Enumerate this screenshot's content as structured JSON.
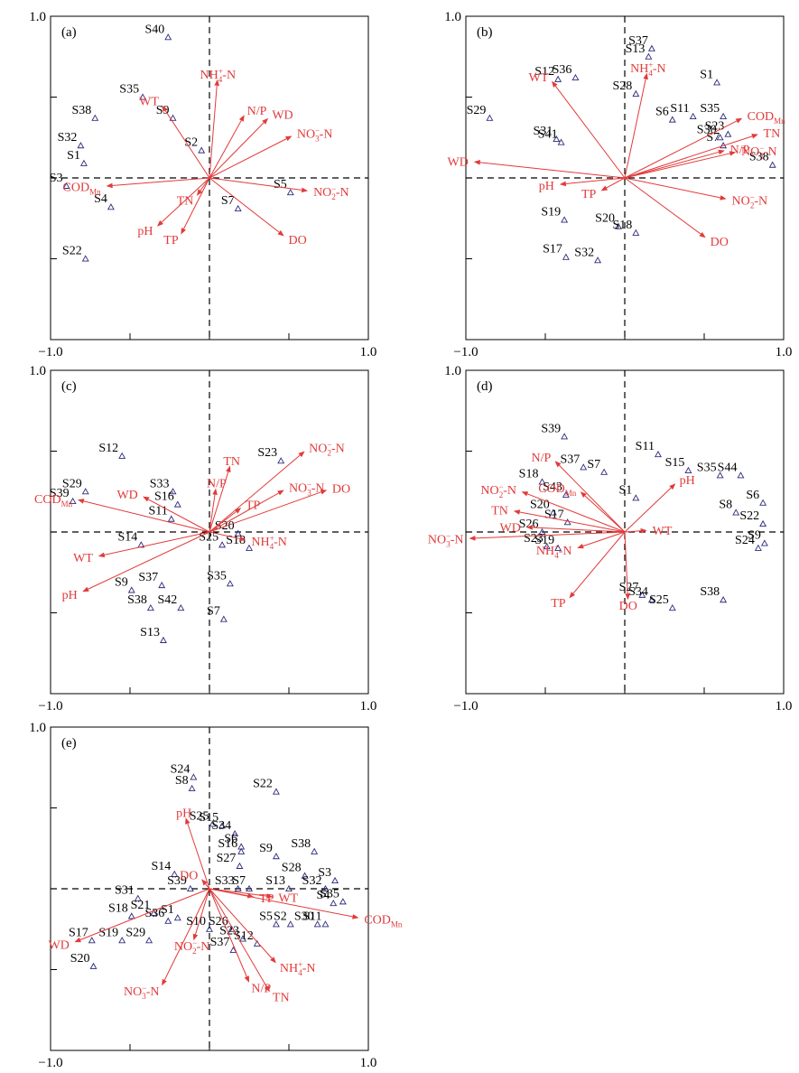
{
  "figure": {
    "tick_min": "−1.0",
    "tick_max": "1.0"
  },
  "chart_data": [
    {
      "type": "scatter",
      "panel": "(a)",
      "xlim": [
        -1,
        1
      ],
      "ylim": [
        -1,
        1
      ],
      "sites": [
        {
          "name": "S40",
          "x": -0.26,
          "y": 0.87
        },
        {
          "name": "S35",
          "x": -0.42,
          "y": 0.5
        },
        {
          "name": "S38",
          "x": -0.72,
          "y": 0.37
        },
        {
          "name": "S9",
          "x": -0.23,
          "y": 0.37
        },
        {
          "name": "S32",
          "x": -0.81,
          "y": 0.2
        },
        {
          "name": "S2",
          "x": -0.05,
          "y": 0.17
        },
        {
          "name": "S1",
          "x": -0.79,
          "y": 0.09
        },
        {
          "name": "S3",
          "x": -0.9,
          "y": -0.05
        },
        {
          "name": "S5",
          "x": 0.51,
          "y": -0.09
        },
        {
          "name": "S4",
          "x": -0.62,
          "y": -0.18
        },
        {
          "name": "S7",
          "x": 0.18,
          "y": -0.19
        },
        {
          "name": "S22",
          "x": -0.78,
          "y": -0.5
        }
      ],
      "vectors": [
        {
          "name": "NH",
          "sup": "+",
          "sub": "4",
          "tail": "-N",
          "x": 0.05,
          "y": 0.61
        },
        {
          "name": "WT",
          "x": -0.3,
          "y": 0.45
        },
        {
          "name": "N/P",
          "x": 0.22,
          "y": 0.39
        },
        {
          "name": "WD",
          "x": 0.37,
          "y": 0.37
        },
        {
          "name": "NO",
          "sup": "−",
          "sub": "3",
          "tail": "-N",
          "x": 0.52,
          "y": 0.26
        },
        {
          "name": "NO",
          "sup": "−",
          "sub": "2",
          "tail": "-N",
          "x": 0.62,
          "y": -0.08
        },
        {
          "name": "DO",
          "x": 0.47,
          "y": -0.36
        },
        {
          "name": "COD",
          "sub": "Mn",
          "x": -0.65,
          "y": -0.05
        },
        {
          "name": "TN",
          "x": -0.08,
          "y": -0.11
        },
        {
          "name": "TP",
          "x": -0.18,
          "y": -0.35
        },
        {
          "name": "pH",
          "x": -0.33,
          "y": -0.3
        }
      ]
    },
    {
      "type": "scatter",
      "panel": "(b)",
      "xlim": [
        -1,
        1
      ],
      "ylim": [
        -1,
        1
      ],
      "sites": [
        {
          "name": "S13",
          "x": 0.15,
          "y": 0.75
        },
        {
          "name": "S37",
          "x": 0.17,
          "y": 0.8
        },
        {
          "name": "S12",
          "x": -0.42,
          "y": 0.61
        },
        {
          "name": "S36",
          "x": -0.31,
          "y": 0.62
        },
        {
          "name": "S1",
          "x": 0.58,
          "y": 0.59
        },
        {
          "name": "S29",
          "x": -0.85,
          "y": 0.37
        },
        {
          "name": "S28",
          "x": 0.07,
          "y": 0.52
        },
        {
          "name": "S6",
          "x": 0.3,
          "y": 0.36
        },
        {
          "name": "S11",
          "x": 0.43,
          "y": 0.38
        },
        {
          "name": "S35",
          "x": 0.62,
          "y": 0.38
        },
        {
          "name": "S30",
          "x": 0.6,
          "y": 0.25
        },
        {
          "name": "S23",
          "x": 0.65,
          "y": 0.27
        },
        {
          "name": "S7",
          "x": 0.62,
          "y": 0.2
        },
        {
          "name": "S31",
          "x": -0.43,
          "y": 0.24
        },
        {
          "name": "S41",
          "x": -0.4,
          "y": 0.22
        },
        {
          "name": "S38",
          "x": 0.93,
          "y": 0.08
        },
        {
          "name": "S19",
          "x": -0.38,
          "y": -0.26
        },
        {
          "name": "S20",
          "x": -0.04,
          "y": -0.3
        },
        {
          "name": "S18",
          "x": 0.07,
          "y": -0.34
        },
        {
          "name": "S17",
          "x": -0.37,
          "y": -0.49
        },
        {
          "name": "S32",
          "x": -0.17,
          "y": -0.51
        }
      ],
      "vectors": [
        {
          "name": "NH",
          "sup": "+",
          "sub": "4",
          "tail": "-N",
          "x": 0.14,
          "y": 0.65
        },
        {
          "name": "WT",
          "x": -0.46,
          "y": 0.6
        },
        {
          "name": "COD",
          "sub": "Mn",
          "x": 0.74,
          "y": 0.37
        },
        {
          "name": "TN",
          "x": 0.84,
          "y": 0.27
        },
        {
          "name": "NO",
          "sup": "−",
          "sub": "3",
          "tail": "-N",
          "x": 0.7,
          "y": 0.16
        },
        {
          "name": "N/P",
          "x": 0.63,
          "y": 0.17
        },
        {
          "name": "WD",
          "x": -0.95,
          "y": 0.1
        },
        {
          "name": "pH",
          "x": -0.41,
          "y": -0.04
        },
        {
          "name": "TP",
          "x": -0.15,
          "y": -0.08
        },
        {
          "name": "NO",
          "sup": "−",
          "sub": "2",
          "tail": "-N",
          "x": 0.64,
          "y": -0.13
        },
        {
          "name": "DO",
          "x": 0.51,
          "y": -0.37
        }
      ]
    },
    {
      "type": "scatter",
      "panel": "(c)",
      "xlim": [
        -1,
        1
      ],
      "ylim": [
        -1,
        1
      ],
      "sites": [
        {
          "name": "S12",
          "x": -0.55,
          "y": 0.47
        },
        {
          "name": "S29",
          "x": -0.78,
          "y": 0.25
        },
        {
          "name": "S39",
          "x": -0.86,
          "y": 0.19
        },
        {
          "name": "S33",
          "x": -0.23,
          "y": 0.25
        },
        {
          "name": "S16",
          "x": -0.2,
          "y": 0.17
        },
        {
          "name": "S11",
          "x": -0.24,
          "y": 0.08
        },
        {
          "name": "S23",
          "x": 0.45,
          "y": 0.44
        },
        {
          "name": "S20",
          "x": 0.18,
          "y": -0.01
        },
        {
          "name": "S25",
          "x": 0.08,
          "y": -0.08
        },
        {
          "name": "S18",
          "x": 0.25,
          "y": -0.1
        },
        {
          "name": "S14",
          "x": -0.43,
          "y": -0.08
        },
        {
          "name": "S9",
          "x": -0.49,
          "y": -0.36
        },
        {
          "name": "S37",
          "x": -0.3,
          "y": -0.33
        },
        {
          "name": "S38",
          "x": -0.37,
          "y": -0.47
        },
        {
          "name": "S42",
          "x": -0.18,
          "y": -0.47
        },
        {
          "name": "S35",
          "x": 0.13,
          "y": -0.32
        },
        {
          "name": "S7",
          "x": 0.09,
          "y": -0.54
        },
        {
          "name": "S13",
          "x": -0.29,
          "y": -0.67
        }
      ],
      "vectors": [
        {
          "name": "NO",
          "sup": "−",
          "sub": "2",
          "tail": "-N",
          "x": 0.6,
          "y": 0.5
        },
        {
          "name": "TN",
          "x": 0.13,
          "y": 0.41
        },
        {
          "name": "N/P",
          "x": 0.04,
          "y": 0.27
        },
        {
          "name": "NO",
          "sup": "−",
          "sub": "3",
          "tail": "-N",
          "x": 0.47,
          "y": 0.26
        },
        {
          "name": "DO",
          "x": 0.74,
          "y": 0.26
        },
        {
          "name": "TP",
          "x": 0.2,
          "y": 0.15
        },
        {
          "name": "WD",
          "x": -0.42,
          "y": 0.22
        },
        {
          "name": "COD",
          "sub": "Mn",
          "x": -0.83,
          "y": 0.2
        },
        {
          "name": "NH",
          "sup": "+",
          "sub": "4",
          "tail": "-N",
          "x": 0.23,
          "y": -0.05
        },
        {
          "name": "WT",
          "x": -0.7,
          "y": -0.15
        },
        {
          "name": "pH",
          "x": -0.8,
          "y": -0.37
        }
      ]
    },
    {
      "type": "scatter",
      "panel": "(d)",
      "xlim": [
        -1,
        1
      ],
      "ylim": [
        -1,
        1
      ],
      "sites": [
        {
          "name": "S39",
          "x": -0.38,
          "y": 0.59
        },
        {
          "name": "S37",
          "x": -0.26,
          "y": 0.4
        },
        {
          "name": "S7",
          "x": -0.13,
          "y": 0.37
        },
        {
          "name": "S11",
          "x": 0.21,
          "y": 0.48
        },
        {
          "name": "S15",
          "x": 0.4,
          "y": 0.38
        },
        {
          "name": "S35",
          "x": 0.6,
          "y": 0.35
        },
        {
          "name": "S44",
          "x": 0.73,
          "y": 0.35
        },
        {
          "name": "S18",
          "x": -0.52,
          "y": 0.31
        },
        {
          "name": "S43",
          "x": -0.37,
          "y": 0.23
        },
        {
          "name": "S1",
          "x": 0.07,
          "y": 0.21
        },
        {
          "name": "S20",
          "x": -0.45,
          "y": 0.12
        },
        {
          "name": "S17",
          "x": -0.36,
          "y": 0.06
        },
        {
          "name": "S26",
          "x": -0.52,
          "y": 0.0
        },
        {
          "name": "S6",
          "x": 0.87,
          "y": 0.18
        },
        {
          "name": "S8",
          "x": 0.7,
          "y": 0.12
        },
        {
          "name": "S22",
          "x": 0.87,
          "y": 0.05
        },
        {
          "name": "S23",
          "x": -0.49,
          "y": -0.09
        },
        {
          "name": "S19",
          "x": -0.42,
          "y": -0.1
        },
        {
          "name": "S9",
          "x": 0.88,
          "y": -0.07
        },
        {
          "name": "S24",
          "x": 0.84,
          "y": -0.1
        },
        {
          "name": "S27",
          "x": 0.11,
          "y": -0.39
        },
        {
          "name": "S34",
          "x": 0.17,
          "y": -0.42
        },
        {
          "name": "S25",
          "x": 0.3,
          "y": -0.47
        },
        {
          "name": "S38",
          "x": 0.62,
          "y": -0.42
        }
      ],
      "vectors": [
        {
          "name": "N/P",
          "x": -0.44,
          "y": 0.44
        },
        {
          "name": "COD",
          "sub": "Mn",
          "x": -0.28,
          "y": 0.25
        },
        {
          "name": "NO",
          "sup": "−",
          "sub": "2",
          "tail": "-N",
          "x": -0.65,
          "y": 0.25
        },
        {
          "name": "pH",
          "x": 0.32,
          "y": 0.3
        },
        {
          "name": "TN",
          "x": -0.7,
          "y": 0.13
        },
        {
          "name": "WD",
          "x": -0.62,
          "y": 0.03
        },
        {
          "name": "WT",
          "x": 0.14,
          "y": 0.01
        },
        {
          "name": "NO",
          "sup": "−",
          "sub": "3",
          "tail": "-N",
          "x": -0.98,
          "y": -0.04
        },
        {
          "name": "NH",
          "sup": "+",
          "sub": "4",
          "tail": "-N",
          "x": -0.3,
          "y": -0.1
        },
        {
          "name": "TP",
          "x": -0.35,
          "y": -0.41
        },
        {
          "name": "DO",
          "x": 0.02,
          "y": -0.42
        }
      ]
    },
    {
      "type": "scatter",
      "panel": "(e)",
      "xlim": [
        -1,
        1
      ],
      "ylim": [
        -1,
        1
      ],
      "sites": [
        {
          "name": "S24",
          "x": -0.1,
          "y": 0.69
        },
        {
          "name": "S8",
          "x": -0.11,
          "y": 0.62
        },
        {
          "name": "S22",
          "x": 0.42,
          "y": 0.6
        },
        {
          "name": "S25",
          "x": 0.02,
          "y": 0.4
        },
        {
          "name": "S15",
          "x": 0.08,
          "y": 0.39
        },
        {
          "name": "S34",
          "x": 0.16,
          "y": 0.34
        },
        {
          "name": "S6",
          "x": 0.2,
          "y": 0.26
        },
        {
          "name": "S16",
          "x": 0.2,
          "y": 0.23
        },
        {
          "name": "S27",
          "x": 0.19,
          "y": 0.14
        },
        {
          "name": "S9",
          "x": 0.42,
          "y": 0.2
        },
        {
          "name": "S38",
          "x": 0.66,
          "y": 0.23
        },
        {
          "name": "S14",
          "x": -0.22,
          "y": 0.09
        },
        {
          "name": "S28",
          "x": 0.6,
          "y": 0.08
        },
        {
          "name": "S3",
          "x": 0.79,
          "y": 0.05
        },
        {
          "name": "S39",
          "x": -0.12,
          "y": 0.0
        },
        {
          "name": "S31",
          "x": -0.45,
          "y": -0.06
        },
        {
          "name": "S13",
          "x": 0.5,
          "y": 0.0
        },
        {
          "name": "S32",
          "x": 0.73,
          "y": 0.0
        },
        {
          "name": "S7",
          "x": 0.25,
          "y": 0.0
        },
        {
          "name": "S33",
          "x": 0.18,
          "y": 0.0
        },
        {
          "name": "S35",
          "x": 0.84,
          "y": -0.08
        },
        {
          "name": "S4",
          "x": 0.78,
          "y": -0.09
        },
        {
          "name": "S18",
          "x": -0.49,
          "y": -0.17
        },
        {
          "name": "S21",
          "x": -0.35,
          "y": -0.15
        },
        {
          "name": "S36",
          "x": -0.26,
          "y": -0.2
        },
        {
          "name": "S1",
          "x": -0.2,
          "y": -0.18
        },
        {
          "name": "S30",
          "x": 0.68,
          "y": -0.22
        },
        {
          "name": "S2",
          "x": 0.51,
          "y": -0.22
        },
        {
          "name": "S5",
          "x": 0.42,
          "y": -0.22
        },
        {
          "name": "S10",
          "x": 0.0,
          "y": -0.25
        },
        {
          "name": "S26",
          "x": 0.14,
          "y": -0.25
        },
        {
          "name": "S23",
          "x": 0.21,
          "y": -0.31
        },
        {
          "name": "S12",
          "x": 0.3,
          "y": -0.34
        },
        {
          "name": "S37",
          "x": 0.15,
          "y": -0.38
        },
        {
          "name": "S17",
          "x": -0.74,
          "y": -0.32
        },
        {
          "name": "S19",
          "x": -0.55,
          "y": -0.32
        },
        {
          "name": "S29",
          "x": -0.38,
          "y": -0.32
        },
        {
          "name": "S20",
          "x": -0.73,
          "y": -0.48
        },
        {
          "name": "S11",
          "x": 0.73,
          "y": -0.22
        }
      ],
      "vectors": [
        {
          "name": "pH",
          "x": -0.15,
          "y": 0.44
        },
        {
          "name": "DO",
          "x": -0.05,
          "y": 0.06
        },
        {
          "name": "TP",
          "x": 0.28,
          "y": -0.05
        },
        {
          "name": "WT",
          "x": 0.4,
          "y": -0.05
        },
        {
          "name": "COD",
          "sub": "Mn",
          "x": 0.94,
          "y": -0.18
        },
        {
          "name": "NH",
          "sup": "+",
          "sub": "4",
          "tail": "-N",
          "x": 0.42,
          "y": -0.46
        },
        {
          "name": "N/P",
          "x": 0.25,
          "y": -0.58
        },
        {
          "name": "TN",
          "x": 0.38,
          "y": -0.64
        },
        {
          "name": "NO",
          "sup": "−",
          "sub": "2",
          "tail": "-N",
          "x": -0.1,
          "y": -0.32
        },
        {
          "name": "NO",
          "sup": "−",
          "sub": "3",
          "tail": "-N",
          "x": -0.3,
          "y": -0.6
        },
        {
          "name": "WD",
          "x": -0.85,
          "y": -0.33
        }
      ]
    }
  ]
}
